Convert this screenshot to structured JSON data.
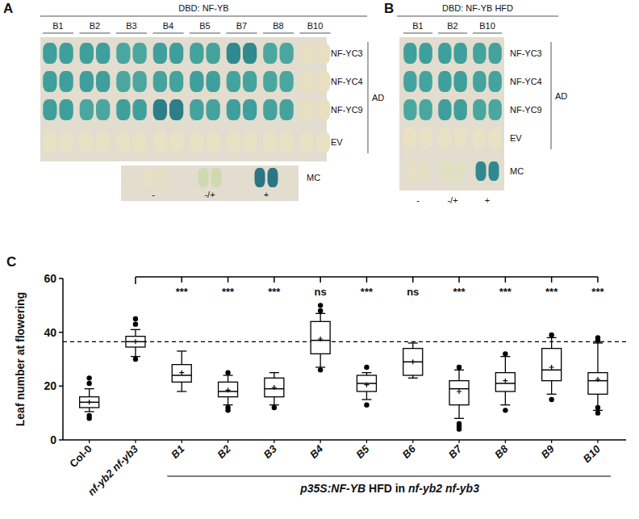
{
  "panel_a": {
    "label": "A",
    "header": "DBD: NF-YB",
    "columns": [
      "B1",
      "B2",
      "B3",
      "B4",
      "B5",
      "B7",
      "B8",
      "B10"
    ],
    "rows": [
      "NF-YC3",
      "NF-YC4",
      "NF-YC9",
      "EV"
    ],
    "side_label": "AD",
    "colors": [
      [
        "#3f9f9c",
        "#3f9f9c",
        "#4aa7a0",
        "#3f9f9c",
        "#45a39e",
        "#2f8a8f",
        "#4aa7a0",
        "#e7dfc0"
      ],
      [
        "#3f9f9c",
        "#3f9f9c",
        "#4aa7a0",
        "#45a39e",
        "#3f9f9c",
        "#45a39e",
        "#4aa7a0",
        "#e7dfc0"
      ],
      [
        "#3f9f9c",
        "#4aa7a0",
        "#3f9f9c",
        "#2c7f88",
        "#45a39e",
        "#3f9f9c",
        "#45a39e",
        "#e7dfc0"
      ],
      [
        "#e9e1c4",
        "#e9e1c4",
        "#e9e1c4",
        "#e9e1c4",
        "#e9e1c4",
        "#e9e1c4",
        "#e9e1c4",
        "#e9e1c4"
      ]
    ],
    "control": {
      "label": "MC",
      "columns": [
        "-",
        "-/+",
        "+"
      ],
      "colors": [
        "#e6dfc3",
        "#cfd9b0",
        "#2c7585"
      ]
    }
  },
  "panel_b": {
    "label": "B",
    "header": "DBD: NF-YB HFD",
    "columns": [
      "B1",
      "B2",
      "B10"
    ],
    "rows": [
      "NF-YC3",
      "NF-YC4",
      "NF-YC9",
      "EV"
    ],
    "side_label": "AD",
    "colors": [
      [
        "#3f9f9c",
        "#3f9f9c",
        "#45a39e"
      ],
      [
        "#45a39e",
        "#3f9f9c",
        "#45a39e"
      ],
      [
        "#4aa7a0",
        "#3f9f9c",
        "#4aa7a0"
      ],
      [
        "#e9e1c4",
        "#e9e1c4",
        "#e9e1c4"
      ]
    ],
    "control": {
      "label": "MC",
      "columns": [
        "-",
        "-/+",
        "+"
      ],
      "colors": [
        "#e6dfc3",
        "#dfe0c0",
        "#2f8a8f"
      ]
    }
  },
  "chart_data": {
    "type": "box",
    "panel_label": "C",
    "y_label": "Leaf number at flowering",
    "categories": [
      "Col-0",
      "nf-yb2 nf-yb3",
      "B1",
      "B2",
      "B3",
      "B4",
      "B5",
      "B6",
      "B7",
      "B8",
      "B9",
      "B10"
    ],
    "group_label": [
      "p35S:NF-YB",
      " HFD in ",
      "nf-yb2 nf-yb3"
    ],
    "ylim": [
      0,
      60
    ],
    "yticks": [
      0,
      20,
      40,
      60
    ],
    "whisker_low": [
      10.5,
      31,
      18,
      13,
      13,
      27,
      15,
      23,
      8,
      13,
      17,
      11
    ],
    "q1": [
      12,
      34.5,
      21.5,
      16,
      16,
      32,
      18,
      24,
      13,
      18,
      22,
      17
    ],
    "median": [
      14,
      36.5,
      24,
      18,
      19,
      37,
      21,
      29,
      19,
      21,
      26,
      22
    ],
    "q3": [
      16,
      38.5,
      28,
      21.5,
      23,
      44,
      24,
      34,
      22,
      25,
      34,
      25
    ],
    "whisker_high": [
      19,
      41,
      33,
      24,
      25,
      47,
      25,
      36,
      26,
      31,
      38,
      36
    ],
    "mean": [
      14,
      36.5,
      25,
      18.5,
      19.5,
      37.5,
      20.5,
      29,
      18,
      22,
      27,
      22.5
    ],
    "outliers": [
      [
        8,
        9,
        21,
        23
      ],
      [
        30,
        43,
        45
      ],
      [],
      [
        11,
        12,
        25
      ],
      [
        12
      ],
      [
        26,
        48,
        50
      ],
      [
        13,
        27
      ],
      [],
      [
        4,
        5,
        6,
        27
      ],
      [
        11,
        32
      ],
      [
        15,
        39
      ],
      [
        10,
        12,
        37,
        38
      ]
    ],
    "significance": [
      null,
      null,
      "***",
      "***",
      "***",
      "ns",
      "***",
      "ns",
      "***",
      "***",
      "***",
      "***"
    ],
    "reference_line": 36.5,
    "color": "#000000"
  }
}
